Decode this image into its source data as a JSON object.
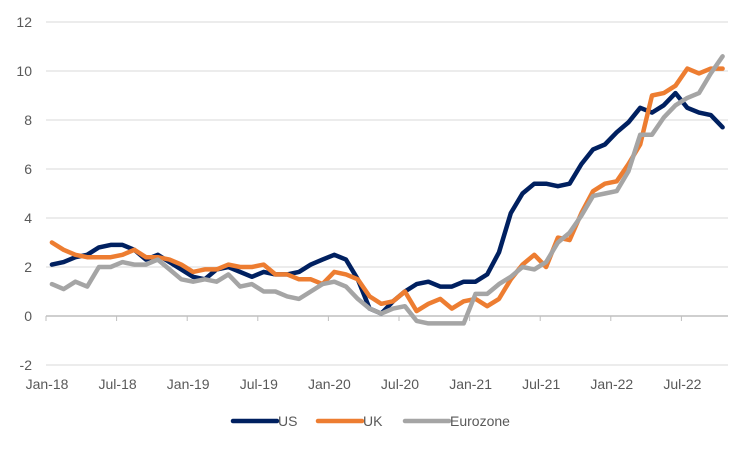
{
  "chart_data": {
    "type": "line",
    "title": "",
    "xlabel": "",
    "ylabel": "",
    "ylim": [
      -2,
      12
    ],
    "yticks": [
      -2,
      0,
      2,
      4,
      6,
      8,
      10,
      12
    ],
    "grid": true,
    "legend_position": "bottom",
    "x_start": "Jan-18",
    "x_tick_labels": [
      "Jan-18",
      "Jul-18",
      "Jan-19",
      "Jul-19",
      "Jan-20",
      "Jul-20",
      "Jan-21",
      "Jul-21",
      "Jan-22",
      "Jul-22"
    ],
    "x_tick_interval_months": 6,
    "x": [
      "Jan-18",
      "Feb-18",
      "Mar-18",
      "Apr-18",
      "May-18",
      "Jun-18",
      "Jul-18",
      "Aug-18",
      "Sep-18",
      "Oct-18",
      "Nov-18",
      "Dec-18",
      "Jan-19",
      "Feb-19",
      "Mar-19",
      "Apr-19",
      "May-19",
      "Jun-19",
      "Jul-19",
      "Aug-19",
      "Sep-19",
      "Oct-19",
      "Nov-19",
      "Dec-19",
      "Jan-20",
      "Feb-20",
      "Mar-20",
      "Apr-20",
      "May-20",
      "Jun-20",
      "Jul-20",
      "Aug-20",
      "Sep-20",
      "Oct-20",
      "Nov-20",
      "Dec-20",
      "Jan-21",
      "Feb-21",
      "Mar-21",
      "Apr-21",
      "May-21",
      "Jun-21",
      "Jul-21",
      "Aug-21",
      "Sep-21",
      "Oct-21",
      "Nov-21",
      "Dec-21",
      "Jan-22",
      "Feb-22",
      "Mar-22",
      "Apr-22",
      "May-22",
      "Jun-22",
      "Jul-22",
      "Aug-22",
      "Sep-22",
      "Oct-22"
    ],
    "series": [
      {
        "name": "US",
        "color": "#002060",
        "values": [
          2.1,
          2.2,
          2.4,
          2.5,
          2.8,
          2.9,
          2.9,
          2.7,
          2.3,
          2.5,
          2.2,
          1.9,
          1.6,
          1.5,
          1.9,
          2.0,
          1.8,
          1.6,
          1.8,
          1.7,
          1.7,
          1.8,
          2.1,
          2.3,
          2.5,
          2.3,
          1.5,
          0.3,
          0.1,
          0.6,
          1.0,
          1.3,
          1.4,
          1.2,
          1.2,
          1.4,
          1.4,
          1.7,
          2.6,
          4.2,
          5.0,
          5.4,
          5.4,
          5.3,
          5.4,
          6.2,
          6.8,
          7.0,
          7.5,
          7.9,
          8.5,
          8.3,
          8.6,
          9.1,
          8.5,
          8.3,
          8.2,
          7.7
        ]
      },
      {
        "name": "UK",
        "color": "#ED7D31",
        "values": [
          3.0,
          2.7,
          2.5,
          2.4,
          2.4,
          2.4,
          2.5,
          2.7,
          2.4,
          2.4,
          2.3,
          2.1,
          1.8,
          1.9,
          1.9,
          2.1,
          2.0,
          2.0,
          2.1,
          1.7,
          1.7,
          1.5,
          1.5,
          1.3,
          1.8,
          1.7,
          1.5,
          0.8,
          0.5,
          0.6,
          1.0,
          0.2,
          0.5,
          0.7,
          0.3,
          0.6,
          0.7,
          0.4,
          0.7,
          1.5,
          2.1,
          2.5,
          2.0,
          3.2,
          3.1,
          4.2,
          5.1,
          5.4,
          5.5,
          6.2,
          7.0,
          9.0,
          9.1,
          9.4,
          10.1,
          9.9,
          10.1,
          10.1
        ]
      },
      {
        "name": "Eurozone",
        "color": "#A5A5A5",
        "values": [
          1.3,
          1.1,
          1.4,
          1.2,
          2.0,
          2.0,
          2.2,
          2.1,
          2.1,
          2.3,
          1.9,
          1.5,
          1.4,
          1.5,
          1.4,
          1.7,
          1.2,
          1.3,
          1.0,
          1.0,
          0.8,
          0.7,
          1.0,
          1.3,
          1.4,
          1.2,
          0.7,
          0.3,
          0.1,
          0.3,
          0.4,
          -0.2,
          -0.3,
          -0.3,
          -0.3,
          -0.3,
          0.9,
          0.9,
          1.3,
          1.6,
          2.0,
          1.9,
          2.2,
          3.0,
          3.4,
          4.1,
          4.9,
          5.0,
          5.1,
          5.9,
          7.4,
          7.4,
          8.1,
          8.6,
          8.9,
          9.1,
          9.9,
          10.6
        ]
      }
    ]
  }
}
